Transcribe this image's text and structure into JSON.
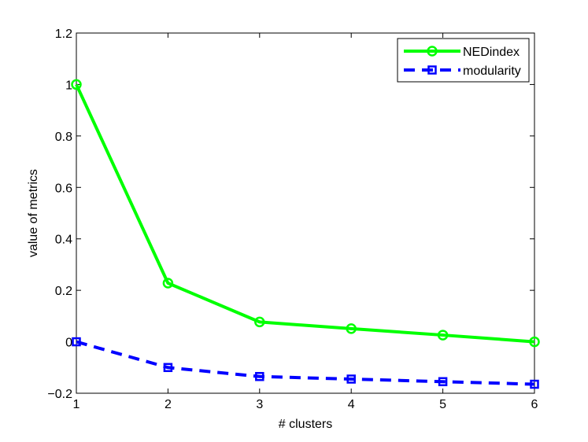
{
  "chart_data": {
    "type": "line",
    "title": "",
    "xlabel": "# clusters",
    "ylabel": "value of metrics",
    "x": [
      1,
      2,
      3,
      4,
      5,
      6
    ],
    "xlim": [
      1,
      6
    ],
    "ylim": [
      -0.2,
      1.2
    ],
    "xticks": [
      1,
      2,
      3,
      4,
      5,
      6
    ],
    "yticks": [
      -0.2,
      0,
      0.2,
      0.4,
      0.6,
      0.8,
      1,
      1.2
    ],
    "xtick_labels": [
      "1",
      "2",
      "3",
      "4",
      "5",
      "6"
    ],
    "ytick_labels": [
      "−0.2",
      "0",
      "0.2",
      "0.4",
      "0.6",
      "0.8",
      "1",
      "1.2"
    ],
    "grid": false,
    "legend_position": "top-right",
    "series": [
      {
        "name": "NEDindex",
        "values": [
          1.0,
          0.228,
          0.077,
          0.051,
          0.026,
          0.0
        ],
        "color": "#00ff00",
        "line_style": "solid",
        "marker": "circle"
      },
      {
        "name": "modularity",
        "values": [
          0.0,
          -0.1,
          -0.135,
          -0.145,
          -0.155,
          -0.165
        ],
        "color": "#0000ff",
        "line_style": "dashed",
        "marker": "square"
      }
    ]
  }
}
